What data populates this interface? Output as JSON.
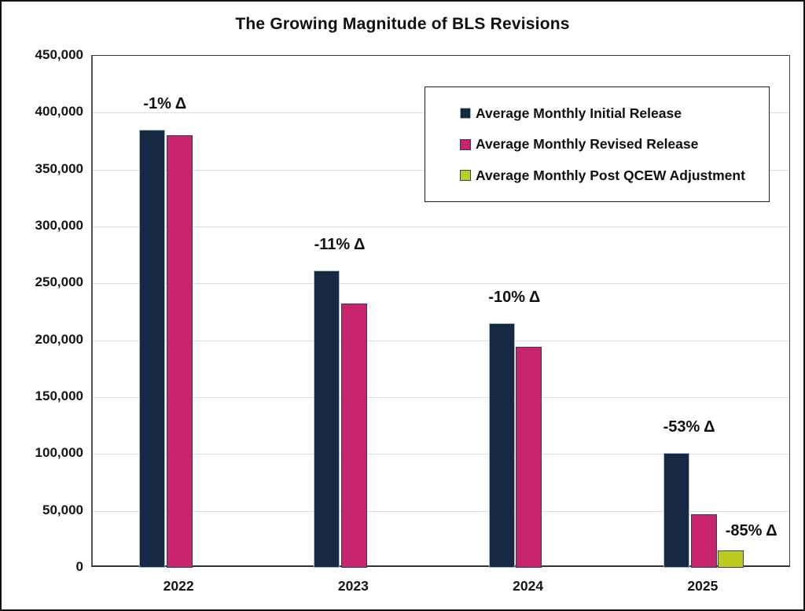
{
  "title": "The Growing Magnitude of BLS Revisions",
  "legend": {
    "items": [
      {
        "label": "Average Monthly Initial Release",
        "key": "initial"
      },
      {
        "label": "Average Monthly Revised Release",
        "key": "revised"
      },
      {
        "label": "Average Monthly Post QCEW Adjustment",
        "key": "qcew"
      }
    ]
  },
  "colors": {
    "initial": "#152A42",
    "initial_border": "#A9B9CB",
    "revised": "#C8246E",
    "revised_border": "#2A3E58",
    "qcew": "#BECB1F",
    "qcew_border": "#2E4C58",
    "gridline": "#DEDEDE",
    "axis_line": "#555555",
    "plot_border": "#404040"
  },
  "y_axis": {
    "ticks": [
      {
        "value": 0,
        "label": "0"
      },
      {
        "value": 50000,
        "label": "50,000"
      },
      {
        "value": 100000,
        "label": "100,000"
      },
      {
        "value": 150000,
        "label": "150,000"
      },
      {
        "value": 200000,
        "label": "200,000"
      },
      {
        "value": 250000,
        "label": "250,000"
      },
      {
        "value": 300000,
        "label": "300,000"
      },
      {
        "value": 350000,
        "label": "350,000"
      },
      {
        "value": 400000,
        "label": "400,000"
      },
      {
        "value": 450000,
        "label": "450,000"
      }
    ]
  },
  "x_axis": {
    "categories": [
      "2022",
      "2023",
      "2024",
      "2025"
    ]
  },
  "chart_data": {
    "type": "bar",
    "title": "The Growing Magnitude of BLS Revisions",
    "categories": [
      "2022",
      "2023",
      "2024",
      "2025"
    ],
    "series": [
      {
        "name": "Average Monthly Initial Release",
        "key": "initial",
        "values": [
          385000,
          261000,
          215000,
          101000
        ]
      },
      {
        "name": "Average Monthly Revised Release",
        "key": "revised",
        "values": [
          380000,
          232000,
          194000,
          47000
        ]
      },
      {
        "name": "Average Monthly Post QCEW Adjustment",
        "key": "qcew",
        "values": [
          null,
          null,
          null,
          15000
        ]
      }
    ],
    "ylim": [
      0,
      450000
    ],
    "ytick_step": 50000,
    "grid": true,
    "legend_position": "top-right",
    "annotations": [
      {
        "text": "-1% Δ",
        "category": 0,
        "anchor": "pair"
      },
      {
        "text": "-11% Δ",
        "category": 1,
        "anchor": "pair"
      },
      {
        "text": "-10% Δ",
        "category": 2,
        "anchor": "pair"
      },
      {
        "text": "-53% Δ",
        "category": 3,
        "anchor": "pair"
      },
      {
        "text": "-85% Δ",
        "category": 3,
        "anchor": "qcew"
      }
    ]
  }
}
